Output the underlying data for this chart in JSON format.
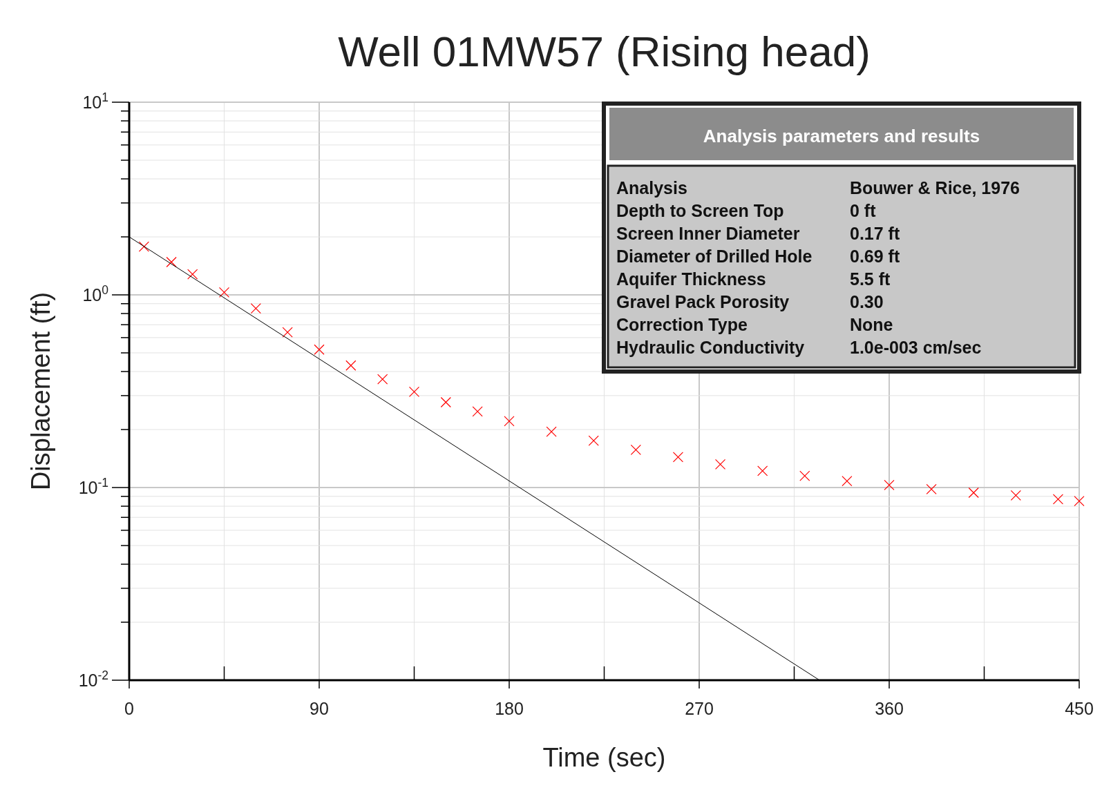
{
  "chart_data": {
    "type": "scatter",
    "title": "Well 01MW57 (Rising head)",
    "xlabel": "Time (sec)",
    "ylabel": "Displacement (ft)",
    "log": "y",
    "grid": true,
    "xlim": [
      0,
      450
    ],
    "ylim": [
      0.01,
      10
    ],
    "xticks": [
      0,
      {
        "value": 45,
        "label": null
      },
      90,
      {
        "value": 135,
        "label": null
      },
      180,
      {
        "value": 225,
        "label": null
      },
      270,
      {
        "value": 315,
        "label": null
      },
      360,
      {
        "value": 405,
        "label": null
      },
      450
    ],
    "yticks": [
      {
        "value": 0.01,
        "label": "10$^{-2}$"
      },
      {
        "value": 0.02,
        "label": null
      },
      {
        "value": 0.03,
        "label": null
      },
      {
        "value": 0.04,
        "label": null
      },
      {
        "value": 0.05,
        "label": null
      },
      {
        "value": 0.06,
        "label": null
      },
      {
        "value": 0.07,
        "label": null
      },
      {
        "value": 0.08,
        "label": null
      },
      {
        "value": 0.09,
        "label": null
      },
      {
        "value": 0.1,
        "label": "10$^{-1}$"
      },
      {
        "value": 0.2,
        "label": null
      },
      {
        "value": 0.3,
        "label": null
      },
      {
        "value": 0.4,
        "label": null
      },
      {
        "value": 0.5,
        "label": null
      },
      {
        "value": 0.6,
        "label": null
      },
      {
        "value": 0.7,
        "label": null
      },
      {
        "value": 0.8,
        "label": null
      },
      {
        "value": 0.9,
        "label": null
      },
      {
        "value": 1,
        "label": "10$^{0}$"
      },
      {
        "value": 2,
        "label": null
      },
      {
        "value": 3,
        "label": null
      },
      {
        "value": 4,
        "label": null
      },
      {
        "value": 5,
        "label": null
      },
      {
        "value": 6,
        "label": null
      },
      {
        "value": 7,
        "label": null
      },
      {
        "value": 8,
        "label": null
      },
      {
        "value": 9,
        "label": null
      },
      {
        "value": 10,
        "label": "10$^{1}$"
      }
    ],
    "series": [
      {
        "marker": "cross",
        "color": "#ff0000",
        "x": [
          7,
          20,
          30,
          45,
          60,
          75,
          90,
          105,
          120,
          135,
          150,
          165,
          180,
          200,
          220,
          240,
          260,
          280,
          300,
          320,
          340,
          360,
          380,
          400,
          420,
          440,
          450
        ],
        "values": [
          1.78,
          1.48,
          1.28,
          1.03,
          0.85,
          0.64,
          0.52,
          0.43,
          0.365,
          0.314,
          0.277,
          0.248,
          0.221,
          0.195,
          0.175,
          0.157,
          0.144,
          0.132,
          0.122,
          0.115,
          0.108,
          0.103,
          0.098,
          0.094,
          0.091,
          0.087,
          0.085
        ]
      },
      {
        "type": "line",
        "color": "#000000",
        "x": [
          0,
          327
        ],
        "values": [
          2.0,
          0.01
        ]
      }
    ],
    "annotations": [
      "Analysis parameters and results",
      "Analysis",
      "Bouwer & Rice, 1976",
      "Depth to Screen Top",
      "0  ft",
      "Screen Inner Diameter",
      "0.17  ft",
      "Diameter of Drilled Hole",
      "0.69  ft",
      "Aquifer Thickness",
      "5.5  ft",
      "Gravel Pack Porosity",
      "0.30",
      "Correction Type",
      "None",
      "Hydraulic Conductivity",
      "1.0e-003  cm/sec"
    ]
  }
}
